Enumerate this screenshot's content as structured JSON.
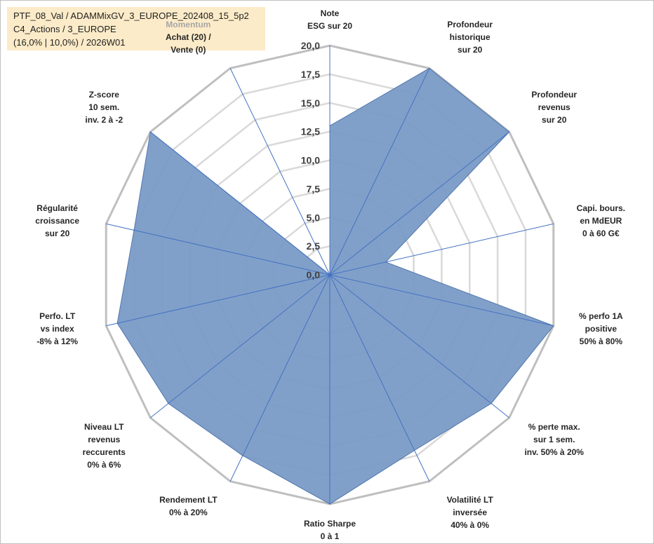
{
  "info_box": {
    "line1": "PTF_08_Val / ADAMMixGV_3_EUROPE_202408_15_5p2",
    "line2": "C4_Actions / 3_EUROPE",
    "line3": "(16,0% | 10,0%) / 2026W01"
  },
  "chart_data": {
    "type": "radar",
    "rmin": 0,
    "rmax": 20,
    "ticks": [
      "0,0",
      "2,5",
      "5,0",
      "7,5",
      "10,0",
      "12,5",
      "15,0",
      "17,5",
      "20,0"
    ],
    "tick_values": [
      0,
      2.5,
      5,
      7.5,
      10,
      12.5,
      15,
      17.5,
      20
    ],
    "axes": [
      {
        "lines": [
          "Note",
          "ESG sur 20"
        ]
      },
      {
        "lines": [
          "Profondeur",
          "historique",
          "sur 20"
        ]
      },
      {
        "lines": [
          "Profondeur",
          "revenus",
          "sur 20"
        ]
      },
      {
        "lines": [
          "Capi. bours.",
          "en MdEUR",
          "0 à 60 G€"
        ]
      },
      {
        "lines": [
          "% perfo 1A",
          "positive",
          "50% à 80%"
        ]
      },
      {
        "lines": [
          "% perte max.",
          "sur 1 sem.",
          "inv. 50% à 20%"
        ]
      },
      {
        "lines": [
          "Volatilité LT",
          "inversée",
          "40% à 0%"
        ]
      },
      {
        "lines": [
          "Ratio Sharpe",
          "0 à 1"
        ]
      },
      {
        "lines": [
          "Rendement LT",
          "0% à 20%"
        ]
      },
      {
        "lines": [
          "Niveau LT",
          "revenus",
          "reccurents",
          "0% à 6%"
        ]
      },
      {
        "lines": [
          "Perfo. LT",
          "vs index",
          "-8% à 12%"
        ]
      },
      {
        "lines": [
          "Régularité",
          "croissance",
          "sur 20"
        ]
      },
      {
        "lines": [
          "Z-score",
          "10 sem.",
          "inv. 2 à -2"
        ]
      },
      {
        "lines": [
          "Momentum",
          "Achat (20) /",
          "Vente (0)"
        ]
      }
    ],
    "values": [
      13,
      20,
      20,
      5,
      20,
      18,
      17,
      20,
      17.5,
      18,
      19,
      17.5,
      20,
      0
    ],
    "series_color": "#4f76ad",
    "fill_color": "#7a9bc6",
    "grid_color": "#d9d9d9",
    "outer_ring_color": "#bfbfbf",
    "axis_color": "#4472c4"
  }
}
